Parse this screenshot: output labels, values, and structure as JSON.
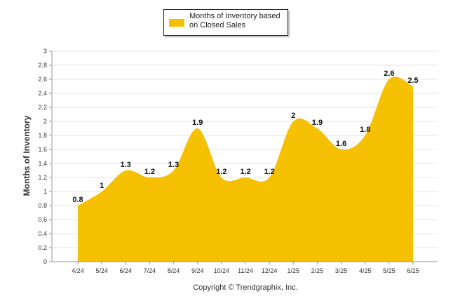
{
  "chart_data": {
    "type": "area",
    "title": "",
    "ylabel": "Months of Inventory",
    "xlabel": "",
    "categories": [
      "4/24",
      "5/24",
      "6/24",
      "7/24",
      "8/24",
      "9/24",
      "10/24",
      "11/24",
      "12/24",
      "1/25",
      "2/25",
      "3/25",
      "4/25",
      "5/25",
      "6/25"
    ],
    "series": [
      {
        "name": "Months of Inventory based on Closed Sales",
        "values": [
          0.8,
          1,
          1.3,
          1.2,
          1.3,
          1.9,
          1.2,
          1.2,
          1.2,
          2,
          1.9,
          1.6,
          1.8,
          2.6,
          2.5
        ]
      }
    ],
    "data_labels": [
      "0.8",
      "1",
      "1.3",
      "1.2",
      "1.3",
      "1.9",
      "1.2",
      "1.2",
      "1.2",
      "2",
      "1.9",
      "1.6",
      "1.8",
      "2.6",
      "2.5"
    ],
    "ylim": [
      0,
      3
    ],
    "yticks": [
      "0",
      "0.2",
      "0.4",
      "0.6",
      "0.8",
      "1",
      "1.2",
      "1.4",
      "1.6",
      "1.8",
      "2",
      "2.2",
      "2.4",
      "2.6",
      "2.8",
      "3"
    ],
    "grid": true,
    "legend": "top-center",
    "color": "#F5C000"
  },
  "footer": {
    "copyright": "Copyright © Trendgraphix, Inc."
  }
}
